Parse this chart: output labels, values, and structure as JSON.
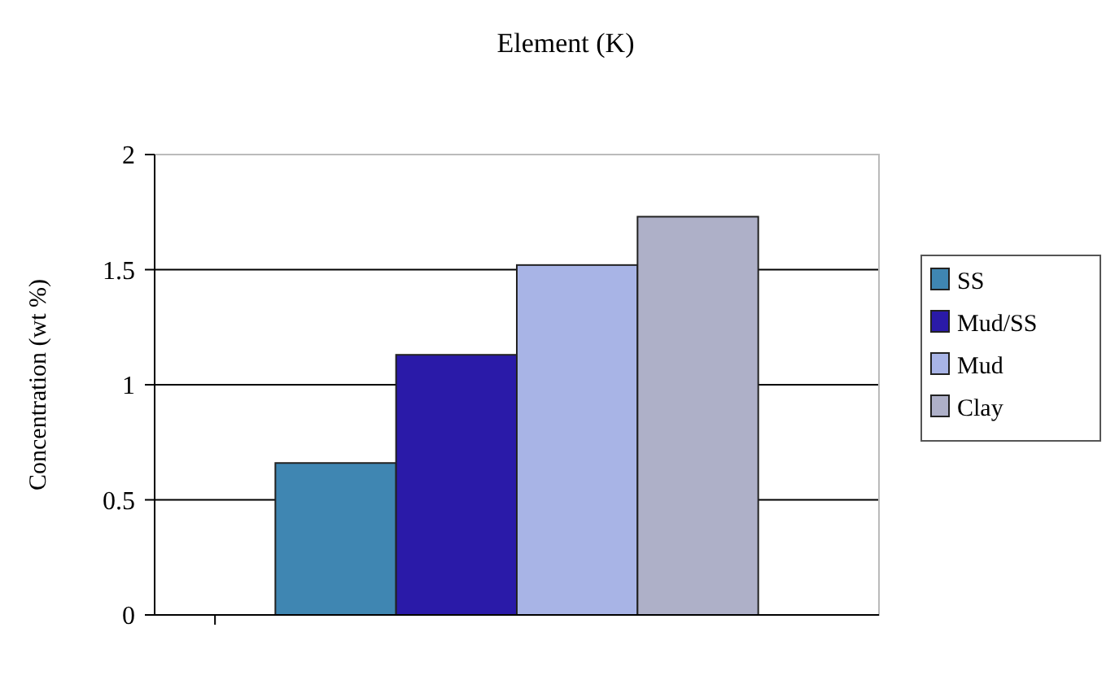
{
  "chart_data": {
    "type": "bar",
    "title": "Element (K)",
    "ylabel": "Concentration (wt %)",
    "categories": [
      null
    ],
    "series": [
      {
        "name": "SS",
        "color": "#3f86b2",
        "values": [
          0.66
        ]
      },
      {
        "name": "Mud/SS",
        "color": "#2a1aa8",
        "values": [
          1.13
        ]
      },
      {
        "name": "Mud",
        "color": "#a8b4e6",
        "values": [
          1.52
        ]
      },
      {
        "name": "Clay",
        "color": "#aeb0c8",
        "values": [
          1.73
        ]
      }
    ],
    "ylim": [
      0,
      2
    ],
    "yticks": [
      0,
      0.5,
      1,
      1.5,
      2
    ],
    "grid": "y",
    "legend": "right"
  }
}
